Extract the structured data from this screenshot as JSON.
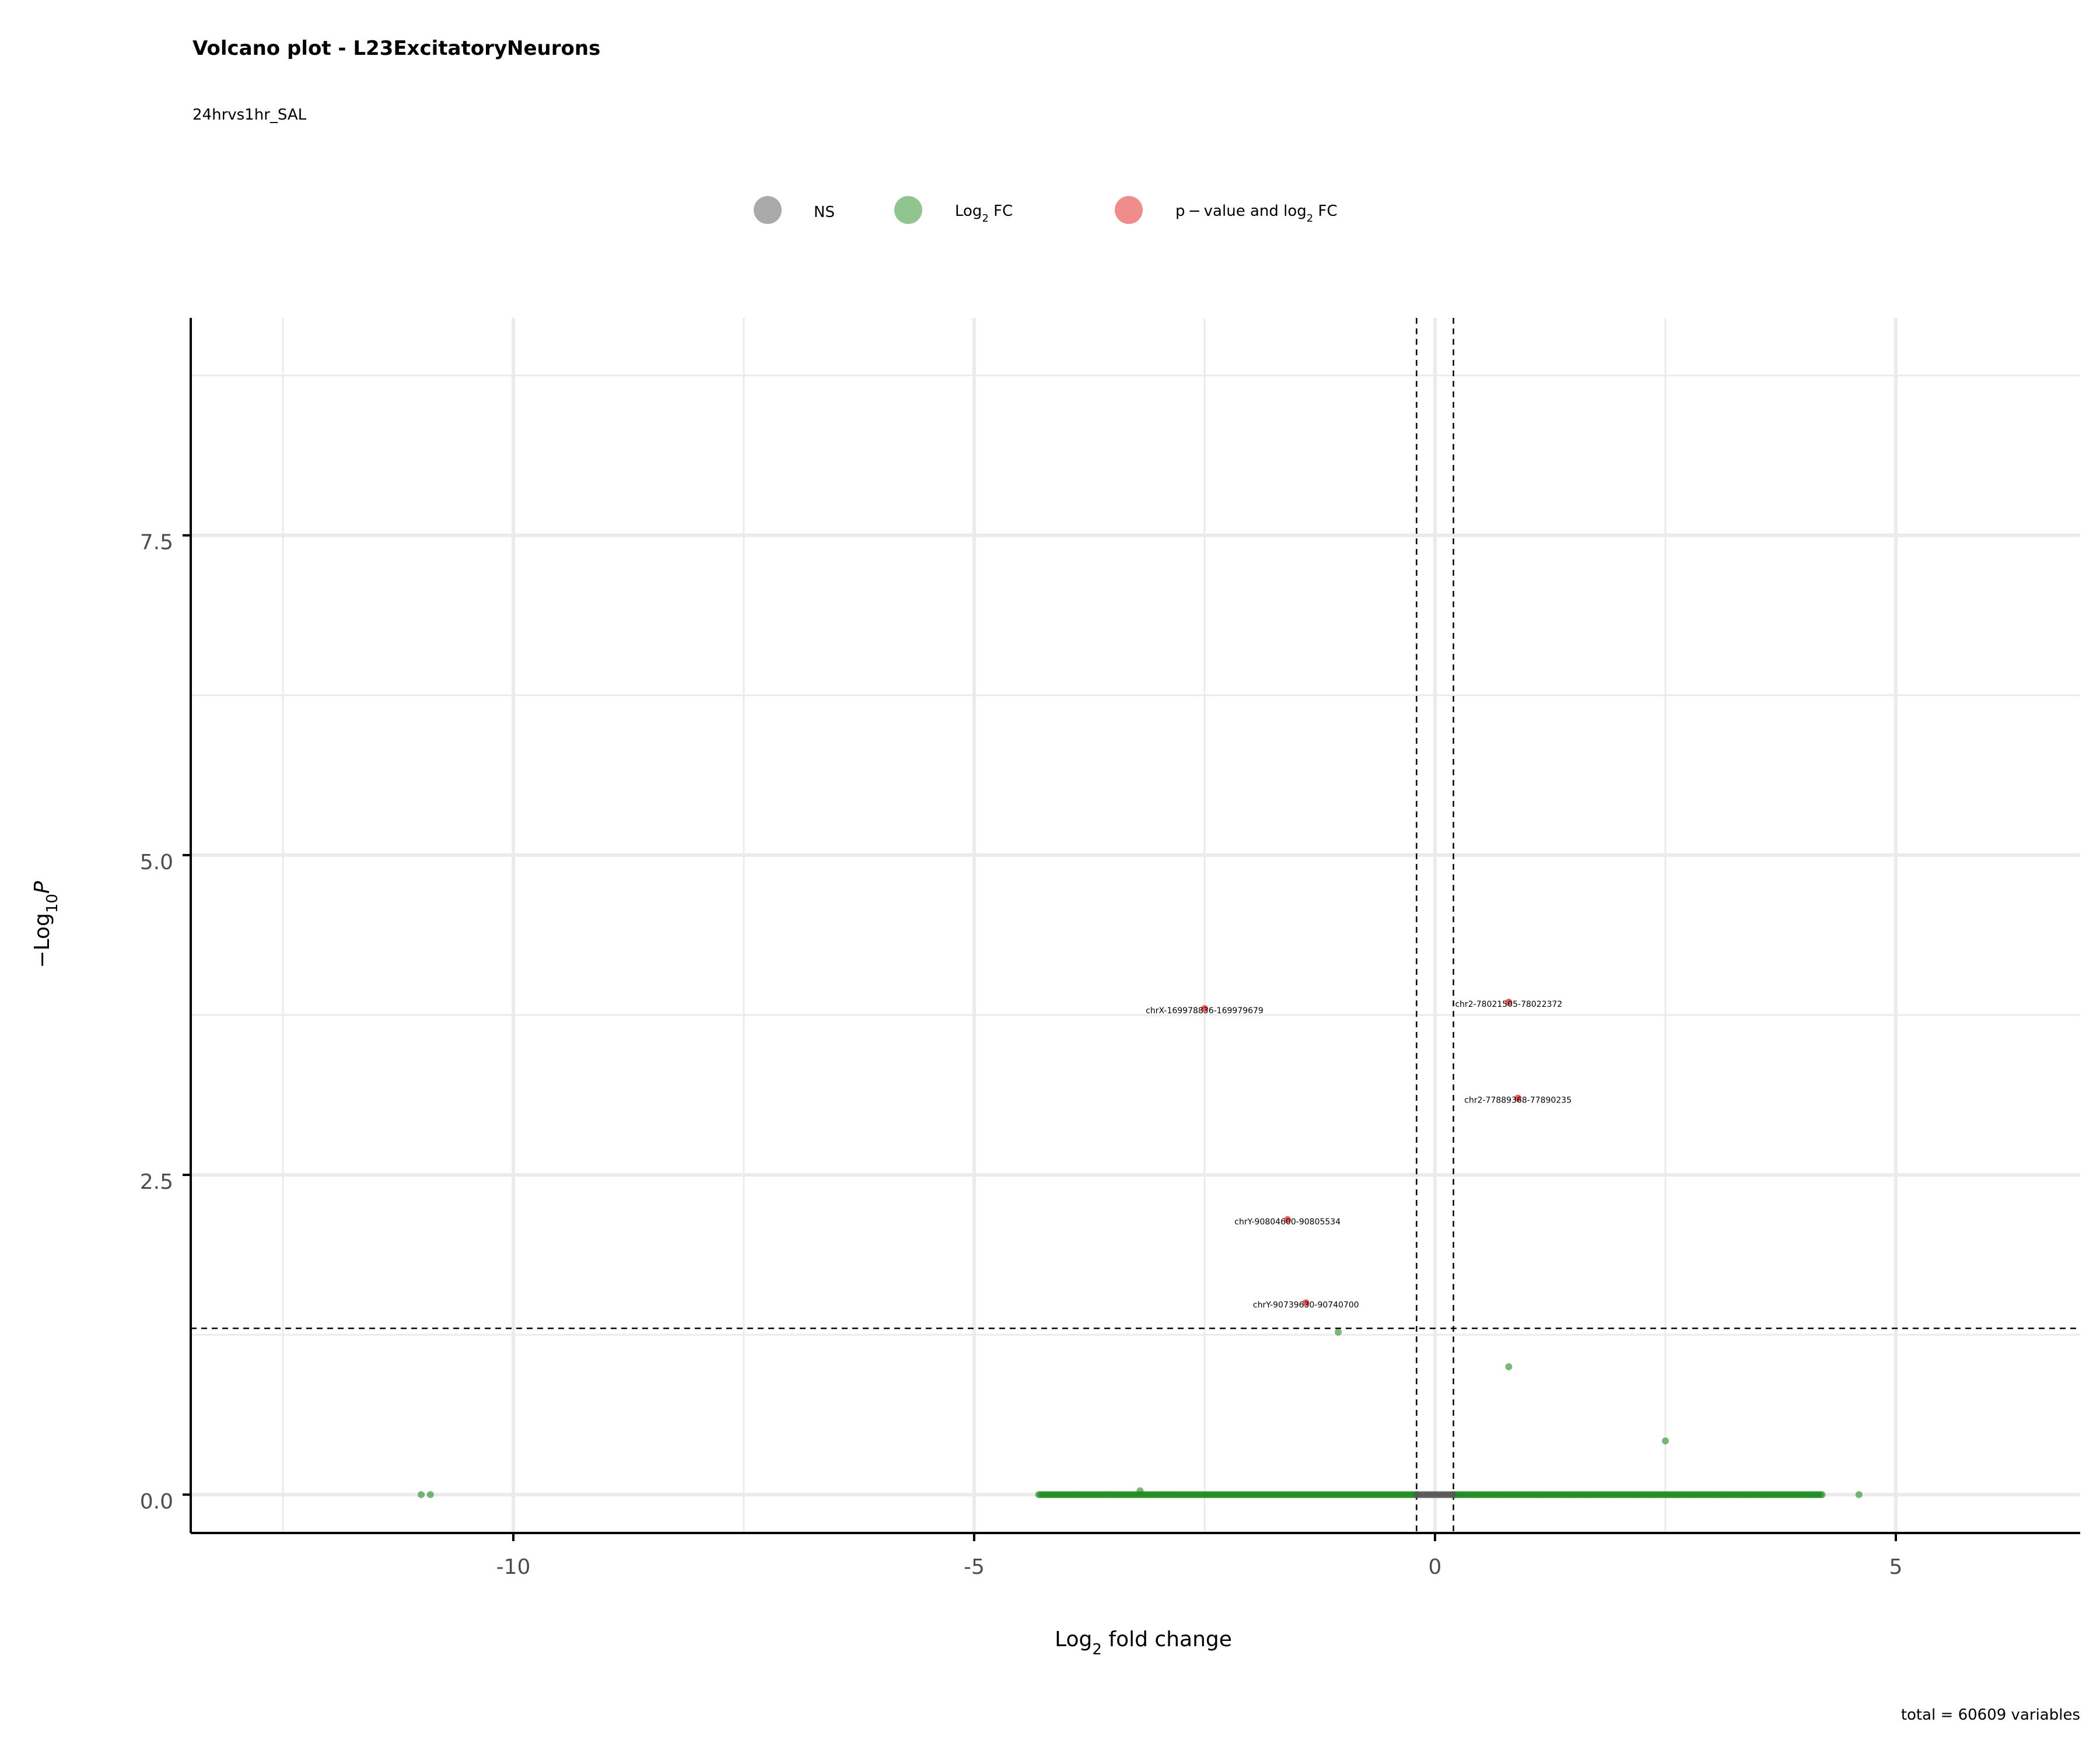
{
  "chart_data": {
    "type": "scatter",
    "title": "Volcano plot - L23ExcitatoryNeurons",
    "subtitle": "24hrvs1hr_SAL",
    "caption": "total = 60609 variables",
    "xlabel_main": "Log",
    "xlabel_sub": "2",
    "xlabel_rest": " fold change",
    "ylabel_prefix": "−Log",
    "ylabel_sub": "10",
    "ylabel_var": "P",
    "xlim": [
      -13.5,
      7
    ],
    "ylim": [
      -0.3,
      9.2
    ],
    "x_ticks": [
      -10,
      -5,
      0,
      5
    ],
    "x_tick_labels": [
      "-10",
      "-5",
      "0",
      "5"
    ],
    "y_ticks": [
      0,
      2.5,
      5,
      7.5
    ],
    "y_tick_labels": [
      "0.0",
      "2.5",
      "5.0",
      "7.5"
    ],
    "fc_cutoff": [
      -0.2,
      0.2
    ],
    "p_cutoff_neglog10": 1.3,
    "grid": true,
    "legend_position": "top",
    "legend": [
      {
        "name": "NS",
        "color": "#555555"
      },
      {
        "name_main": "Log",
        "name_sub": "2",
        "name_rest": " FC",
        "color": "#228B22"
      },
      {
        "name_main": "p − value and log",
        "name_sub": "2",
        "name_rest": " FC",
        "color": "#E41A1C"
      }
    ],
    "colors": {
      "ns": "#555555",
      "log2fc": "#228B22",
      "both": "#E41A1C"
    },
    "labeled_points": [
      {
        "label": "chrX-169978836-169979679",
        "x": -2.5,
        "y": 3.8
      },
      {
        "label": "chr2-78021505-78022372",
        "x": 0.8,
        "y": 3.85
      },
      {
        "label": "chr2-77889368-77890235",
        "x": 0.9,
        "y": 3.1
      },
      {
        "label": "chrY-90804600-90805534",
        "x": -1.6,
        "y": 2.15
      },
      {
        "label": "chrY-90739630-90740700",
        "x": -1.4,
        "y": 1.5
      }
    ],
    "log2fc_points": [
      {
        "x": -1.05,
        "y": 1.27
      },
      {
        "x": 0.8,
        "y": 1.0
      },
      {
        "x": 2.5,
        "y": 0.42
      },
      {
        "x": -11.0,
        "y": 0.0
      },
      {
        "x": -10.9,
        "y": 0.0
      },
      {
        "x": -3.2,
        "y": 0.03
      },
      {
        "x": 4.6,
        "y": 0.0
      }
    ],
    "baseline_band": {
      "negative_range": [
        -4.3,
        -0.2
      ],
      "positive_range": [
        0.2,
        4.2
      ],
      "ns_range": [
        -0.2,
        0.2
      ],
      "y": 0.0
    }
  }
}
